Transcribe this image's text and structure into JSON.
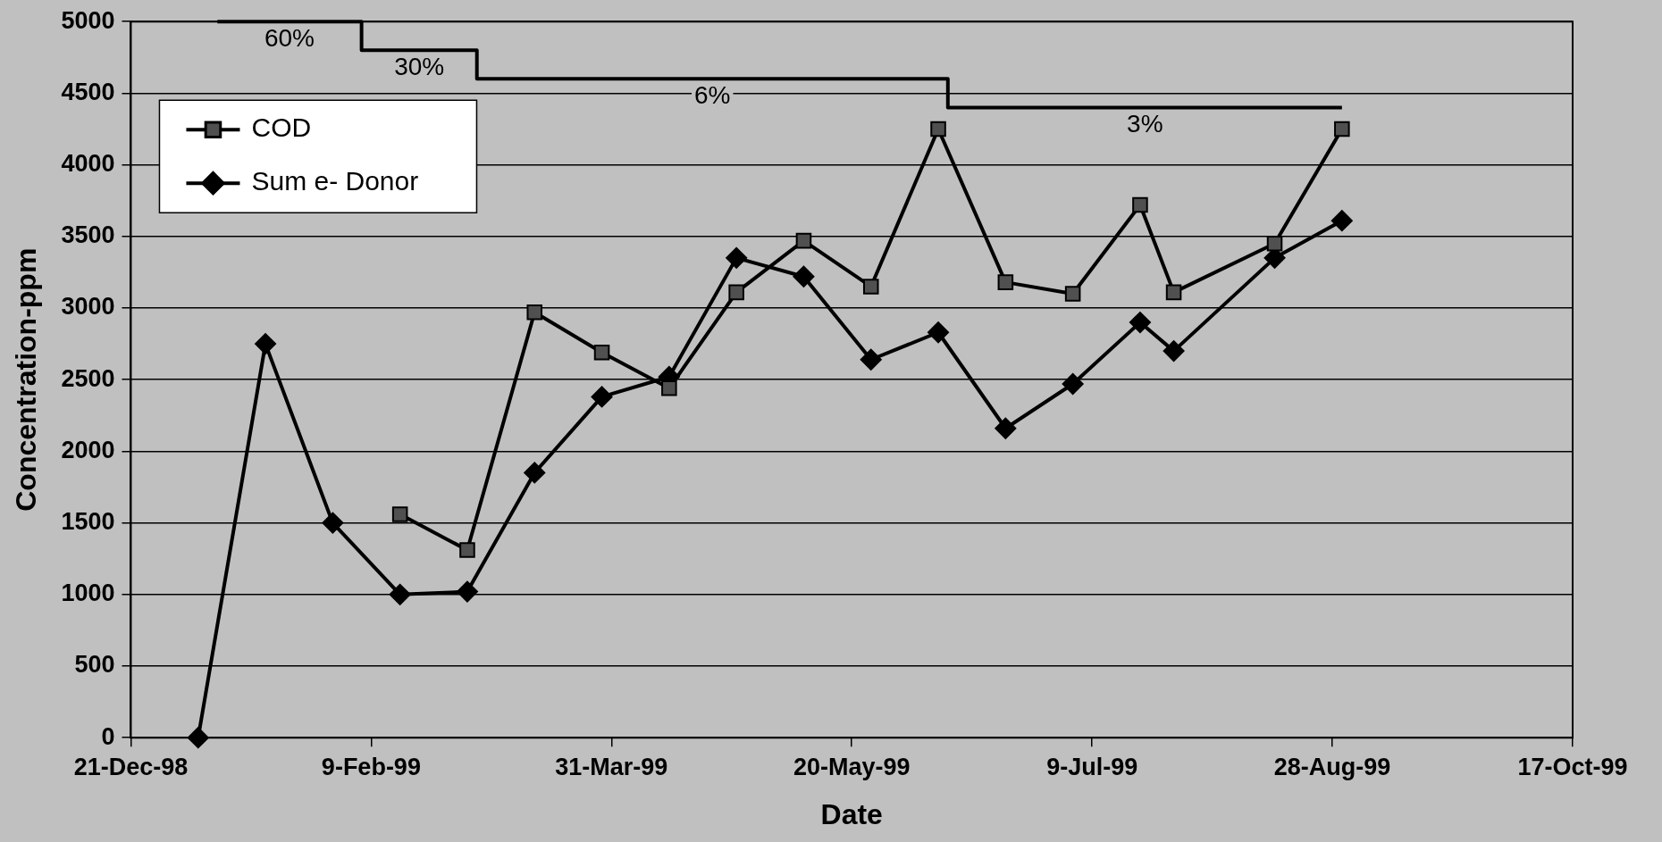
{
  "chart_data": {
    "type": "line",
    "xlabel": "Date",
    "ylabel": "Concentration-ppm",
    "xlim": [
      "1998-12-21",
      "1999-10-17"
    ],
    "xticks": [
      {
        "value": "1998-12-21",
        "label": "21-Dec-98"
      },
      {
        "value": "1999-02-09",
        "label": "9-Feb-99"
      },
      {
        "value": "1999-03-31",
        "label": "31-Mar-99"
      },
      {
        "value": "1999-05-20",
        "label": "20-May-99"
      },
      {
        "value": "1999-07-09",
        "label": "9-Jul-99"
      },
      {
        "value": "1999-08-28",
        "label": "28-Aug-99"
      },
      {
        "value": "1999-10-17",
        "label": "17-Oct-99"
      }
    ],
    "ylim": [
      0,
      5000
    ],
    "yticks": [
      0,
      500,
      1000,
      1500,
      2000,
      2500,
      3000,
      3500,
      4000,
      4500,
      5000
    ],
    "grid": "y",
    "legend": "top left",
    "line_style": "solid",
    "series": [
      {
        "name": "COD",
        "color": "#000000",
        "marker": "square",
        "x": [
          "1999-02-15",
          "1999-03-01",
          "1999-03-15",
          "1999-03-29",
          "1999-04-12",
          "1999-04-26",
          "1999-05-10",
          "1999-05-24",
          "1999-06-07",
          "1999-06-21",
          "1999-07-05",
          "1999-07-19",
          "1999-07-26",
          "1999-08-16",
          "1999-08-30"
        ],
        "values": [
          1560,
          1310,
          2970,
          2690,
          2440,
          3110,
          3470,
          3150,
          4250,
          3180,
          3100,
          3720,
          3110,
          3450,
          4250
        ]
      },
      {
        "name": "Sum e- Donor",
        "color": "#000000",
        "marker": "diamond",
        "x": [
          "1999-01-04",
          "1999-01-18",
          "1999-02-01",
          "1999-02-15",
          "1999-03-01",
          "1999-03-15",
          "1999-03-29",
          "1999-04-12",
          "1999-04-26",
          "1999-05-10",
          "1999-05-24",
          "1999-06-07",
          "1999-06-21",
          "1999-07-05",
          "1999-07-19",
          "1999-07-26",
          "1999-08-16",
          "1999-08-30"
        ],
        "values": [
          0,
          2750,
          1500,
          1000,
          1020,
          1850,
          2380,
          2520,
          3350,
          3220,
          2640,
          2830,
          2160,
          2470,
          2900,
          2700,
          3350,
          3610
        ]
      },
      {
        "type": "step",
        "color": "#000000",
        "marker": "none",
        "x": [
          "1999-01-08",
          "1999-02-07",
          "1999-03-03",
          "1999-06-09",
          "1999-08-30"
        ],
        "values": [
          5000,
          4800,
          4600,
          4400,
          4400
        ]
      }
    ],
    "annotations": [
      "60%",
      "30%",
      "6%",
      "3%"
    ]
  }
}
